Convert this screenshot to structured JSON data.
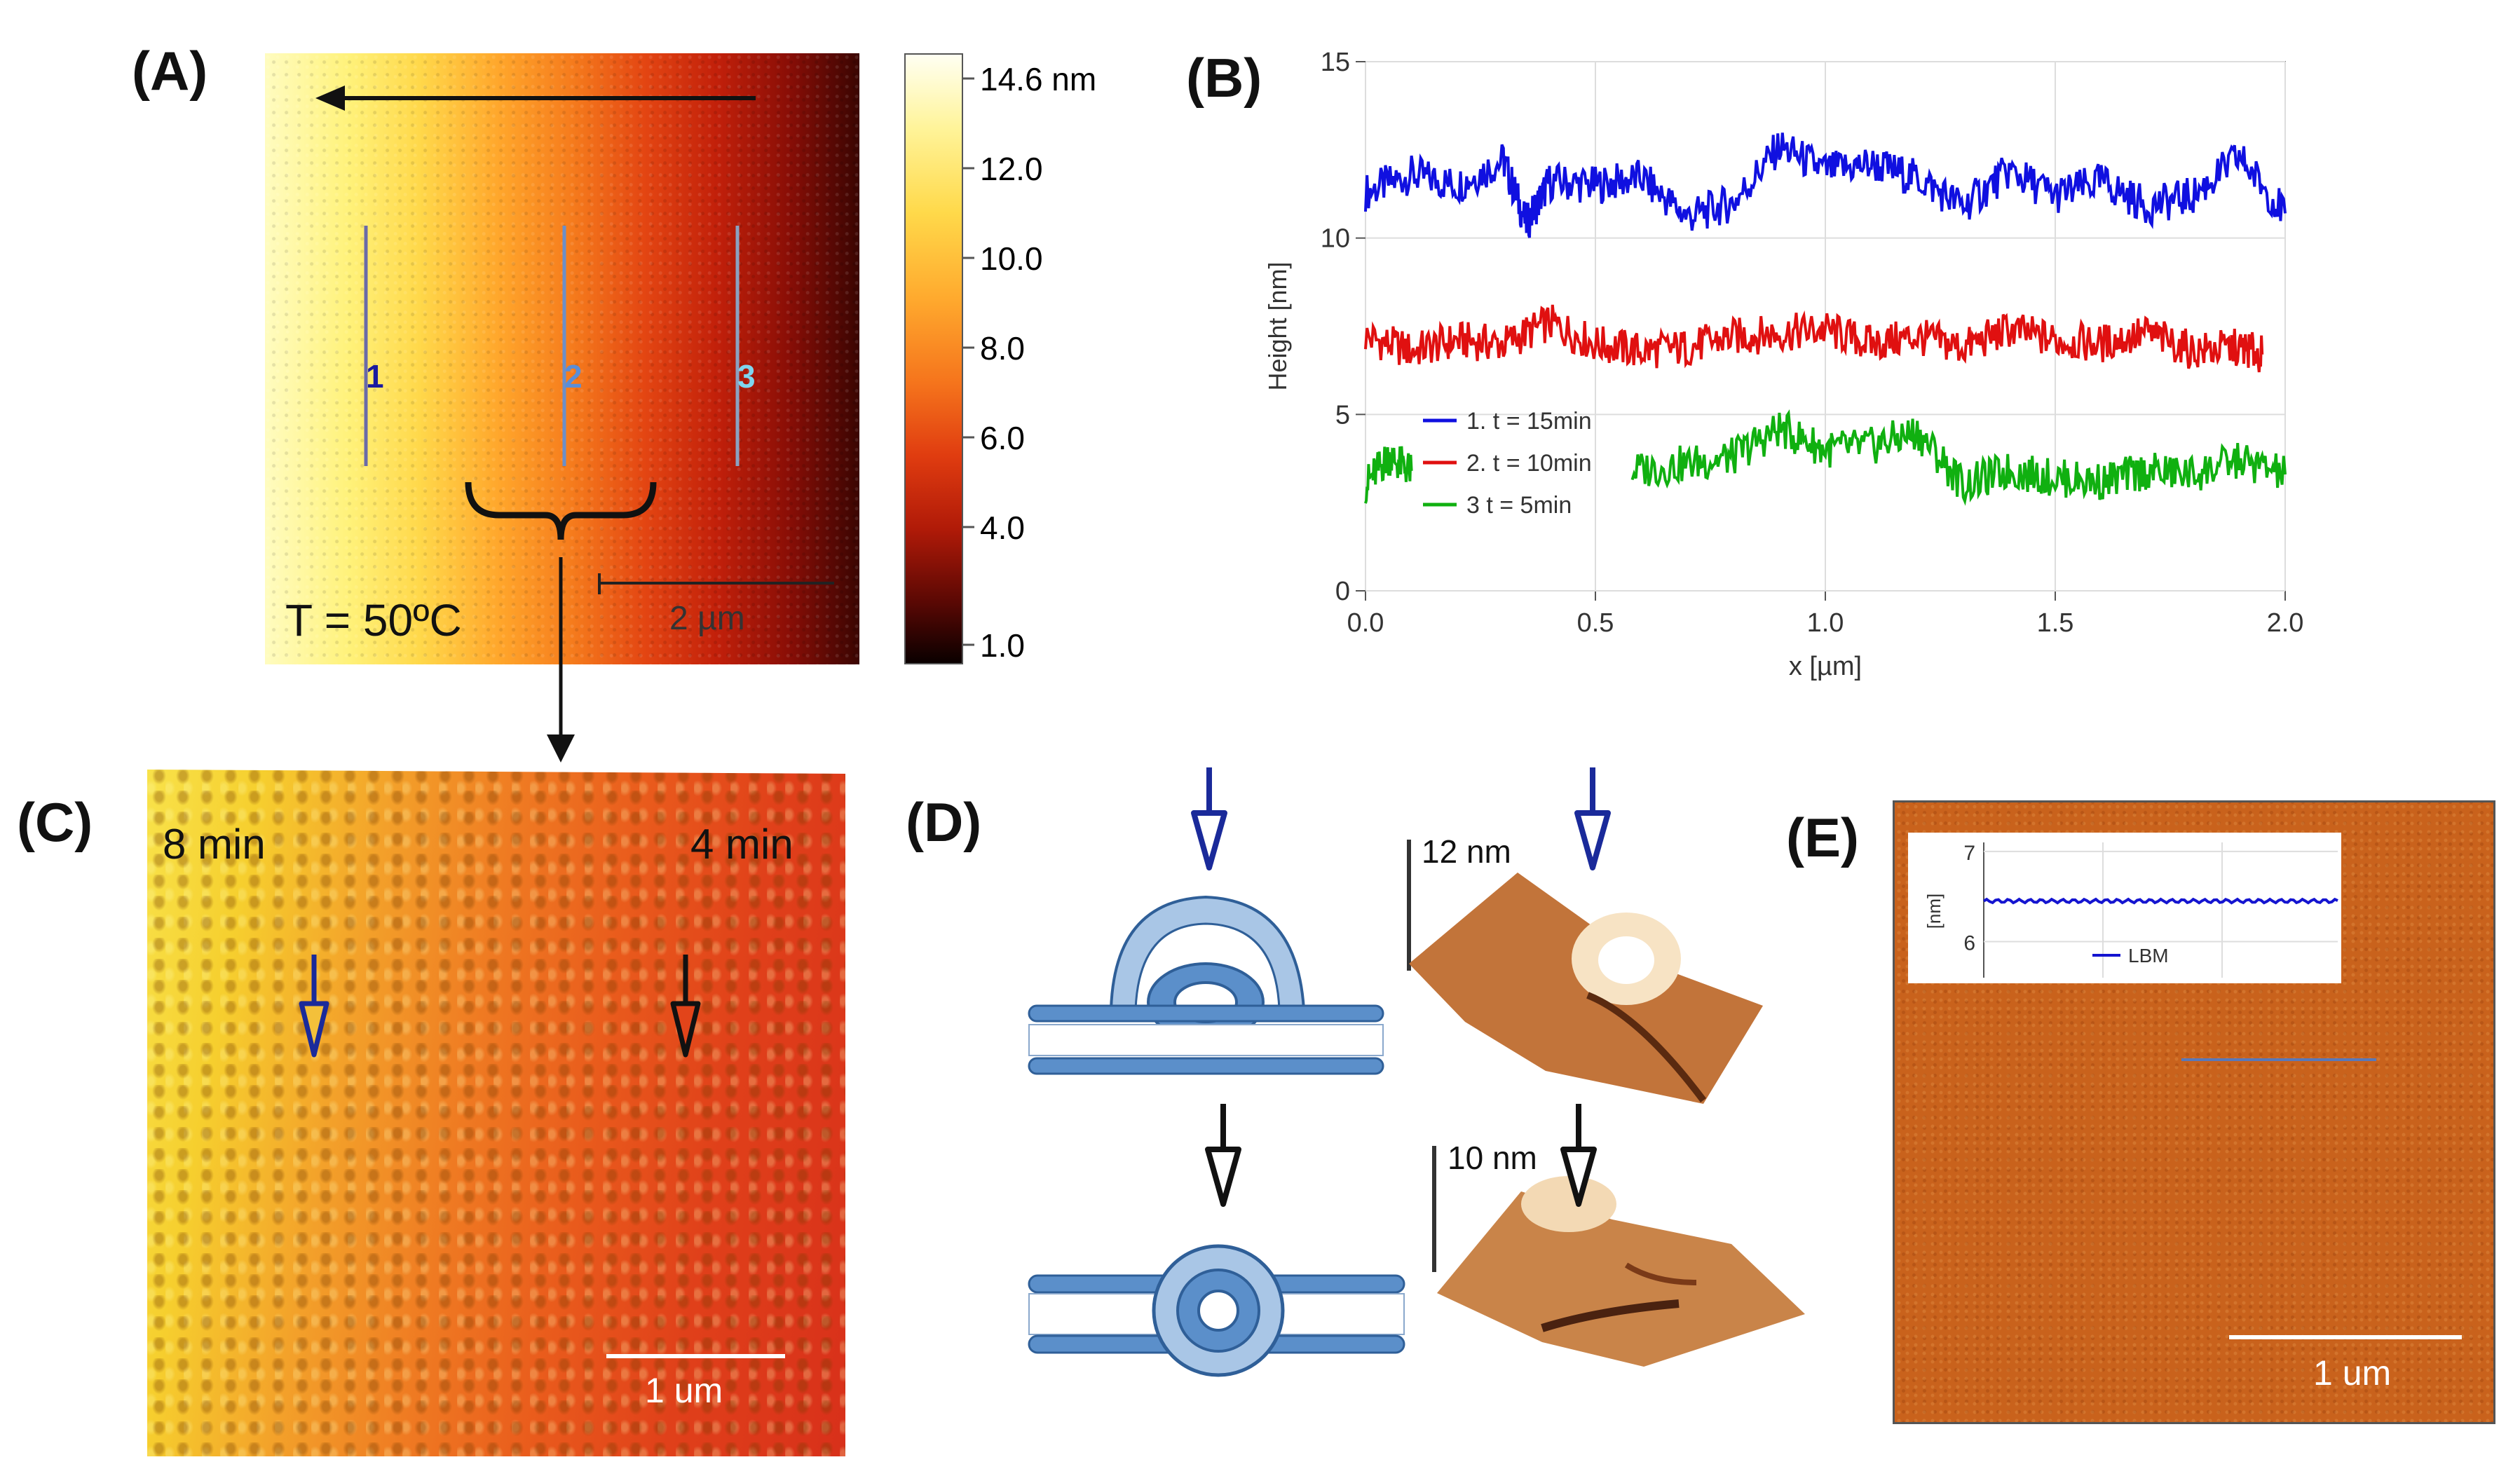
{
  "panels": {
    "a": "(A)",
    "b": "(B)",
    "c": "(C)",
    "d": "(D)",
    "e": "(E)"
  },
  "panelA": {
    "temperature": "T = 50ºC",
    "scale_bar": "2 µm",
    "lines": [
      "1",
      "2",
      "3"
    ],
    "colorbar_ticks": [
      "14.6 nm",
      "12.0",
      "10.0",
      "8.0",
      "6.0",
      "4.0",
      "1.0"
    ],
    "colors": {
      "line1_label": "#1a1aa0",
      "line2_label": "#5a8ed8",
      "line3_label": "#7fd6ef"
    }
  },
  "chart_data": {
    "type": "line",
    "title": "",
    "xlabel": "x [µm]",
    "ylabel": "Height [nm]",
    "xlim": [
      0,
      2.0
    ],
    "ylim": [
      0,
      15
    ],
    "xticks": [
      "0.0",
      "0.5",
      "1.0",
      "1.5",
      "2.0"
    ],
    "yticks": [
      "0",
      "5",
      "10",
      "15"
    ],
    "legend_position": "bottom-left",
    "series": [
      {
        "name": "1. t = 15min",
        "color": "#1010e0",
        "x": [
          0,
          0.1,
          0.2,
          0.3,
          0.35,
          0.4,
          0.5,
          0.6,
          0.7,
          0.8,
          0.9,
          1.0,
          1.1,
          1.2,
          1.3,
          1.4,
          1.5,
          1.6,
          1.7,
          1.8,
          1.9,
          2.0
        ],
        "values": [
          11.3,
          11.8,
          11.5,
          12.2,
          10.4,
          11.6,
          11.5,
          11.7,
          10.6,
          11.0,
          12.6,
          11.9,
          12.1,
          11.7,
          10.9,
          11.9,
          11.2,
          11.6,
          10.9,
          11.2,
          12.3,
          10.7
        ]
      },
      {
        "name": "2. t = 10min",
        "color": "#e01010",
        "x": [
          0,
          0.1,
          0.2,
          0.3,
          0.4,
          0.5,
          0.6,
          0.7,
          0.8,
          0.9,
          1.0,
          1.1,
          1.2,
          1.3,
          1.4,
          1.5,
          1.6,
          1.7,
          1.8,
          1.9,
          1.95
        ],
        "values": [
          7.2,
          6.8,
          7.1,
          7.0,
          7.6,
          7.0,
          6.8,
          6.9,
          7.2,
          7.3,
          7.4,
          7.0,
          7.2,
          6.9,
          7.4,
          7.1,
          7.0,
          7.3,
          6.8,
          6.9,
          6.7
        ]
      },
      {
        "name": "3 t = 5min",
        "color": "#10b010",
        "x": [
          0,
          0.05,
          0.1,
          0.58,
          0.7,
          0.8,
          0.9,
          1.0,
          1.1,
          1.2,
          1.3,
          1.4,
          1.5,
          1.6,
          1.7,
          1.8,
          1.9,
          2.0
        ],
        "values": [
          3.0,
          3.8,
          3.4,
          3.4,
          3.6,
          3.8,
          4.6,
          4.0,
          4.1,
          4.5,
          3.0,
          3.4,
          3.2,
          3.1,
          3.4,
          3.3,
          3.7,
          3.3
        ]
      }
    ]
  },
  "panelC": {
    "left_time": "8 min",
    "right_time": "4 min",
    "scale_bar": "1 um"
  },
  "panelD": {
    "top_height": "12 nm",
    "bottom_height": "10 nm"
  },
  "panelE": {
    "scale_bar": "1 um",
    "inset": {
      "ylabel": "[nm]",
      "yticks": [
        "7",
        "6"
      ],
      "legend": "LBM",
      "ylim": [
        5.6,
        7.1
      ],
      "value": 6.45
    }
  }
}
